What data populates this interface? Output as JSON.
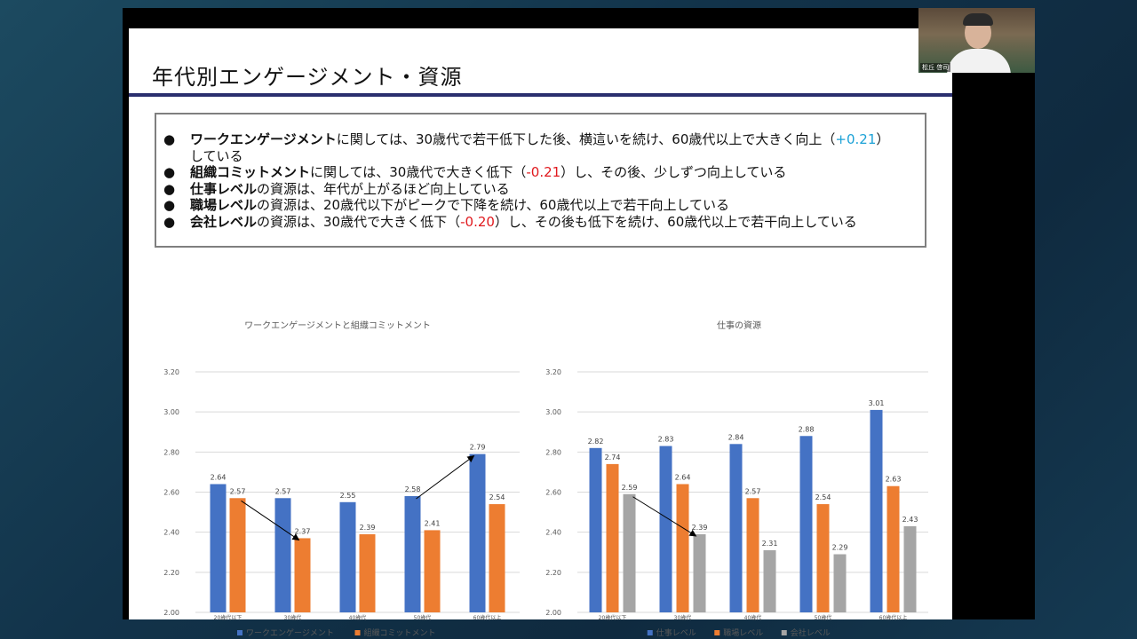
{
  "slide": {
    "title": "年代別エンゲージメント・資源",
    "bullets": [
      {
        "bold": "ワークエンゲージメント",
        "rest": "に関しては、30歳代で若干低下した後、横這いを続け、60歳代以上で大きく向上（",
        "hl": "+0.21",
        "hl_type": "pos",
        "tail": "）",
        "line2": "している"
      },
      {
        "bold": "組織コミットメント",
        "rest": "に関しては、30歳代で大きく低下（",
        "hl": "-0.21",
        "hl_type": "neg",
        "tail": "）し、その後、少しずつ向上している"
      },
      {
        "bold": "仕事レベル",
        "rest": "の資源は、年代が上がるほど向上している"
      },
      {
        "bold": "職場レベル",
        "rest": "の資源は、20歳代以下がピークで下降を続け、60歳代以上で若干向上している"
      },
      {
        "bold": "会社レベル",
        "rest": "の資源は、30歳代で大きく低下（",
        "hl": "-0.20",
        "hl_type": "neg",
        "tail": "）し、その後も低下を続け、60歳代以上で若干向上している"
      }
    ],
    "bullet_symbol": "●"
  },
  "camera": {
    "name_label": "松丘 啓司"
  },
  "chart_data": [
    {
      "type": "bar",
      "title": "ワークエンゲージメントと組織コミットメント",
      "categories": [
        "20歳代以下",
        "30歳代",
        "40歳代",
        "50歳代",
        "60歳代以上"
      ],
      "series": [
        {
          "name": "ワークエンゲージメント",
          "values": [
            2.64,
            2.57,
            2.55,
            2.58,
            2.79
          ],
          "color": "#4472c4"
        },
        {
          "name": "組織コミットメント",
          "values": [
            2.57,
            2.37,
            2.39,
            2.41,
            2.54
          ],
          "color": "#ed7d31"
        }
      ],
      "ylim": [
        2.0,
        3.2
      ],
      "yticks": [
        "2.00",
        "2.20",
        "2.40",
        "2.60",
        "2.80",
        "3.00",
        "3.20"
      ],
      "grid": true,
      "legend": "bottom",
      "annotations": [
        {
          "type": "arrow",
          "from": {
            "series": 1,
            "category": 0
          },
          "to": {
            "series": 1,
            "category": 1
          }
        },
        {
          "type": "arrow",
          "from": {
            "series": 0,
            "category": 3
          },
          "to": {
            "series": 0,
            "category": 4
          }
        }
      ]
    },
    {
      "type": "bar",
      "title": "仕事の資源",
      "categories": [
        "20歳代以下",
        "30歳代",
        "40歳代",
        "50歳代",
        "60歳代以上"
      ],
      "series": [
        {
          "name": "仕事レベル",
          "values": [
            2.82,
            2.83,
            2.84,
            2.88,
            3.01
          ],
          "color": "#4472c4"
        },
        {
          "name": "職場レベル",
          "values": [
            2.74,
            2.64,
            2.57,
            2.54,
            2.63
          ],
          "color": "#ed7d31"
        },
        {
          "name": "会社レベル",
          "values": [
            2.59,
            2.39,
            2.31,
            2.29,
            2.43
          ],
          "color": "#a5a5a5"
        }
      ],
      "ylim": [
        2.0,
        3.2
      ],
      "yticks": [
        "2.00",
        "2.20",
        "2.40",
        "2.60",
        "2.80",
        "3.00",
        "3.20"
      ],
      "grid": true,
      "legend": "bottom",
      "annotations": [
        {
          "type": "arrow",
          "from": {
            "series": 2,
            "category": 0
          },
          "to": {
            "series": 2,
            "category": 1
          }
        }
      ]
    }
  ]
}
